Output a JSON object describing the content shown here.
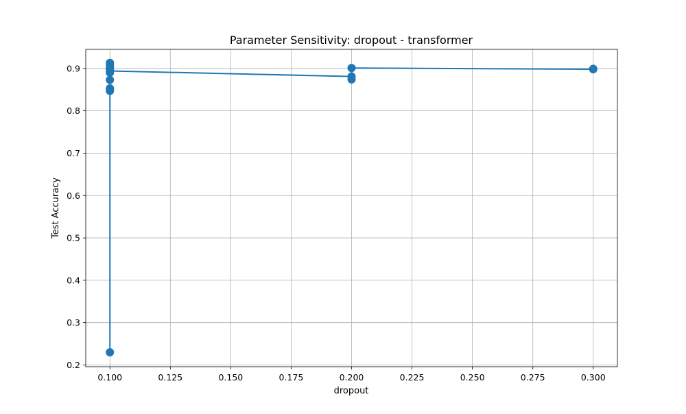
{
  "chart_data": {
    "type": "line",
    "title": "Parameter Sensitivity: dropout - transformer",
    "xlabel": "dropout",
    "ylabel": "Test Accuracy",
    "xlim": [
      0.09,
      0.31
    ],
    "ylim": [
      0.196,
      0.945
    ],
    "xticks": [
      0.1,
      0.125,
      0.15,
      0.175,
      0.2,
      0.225,
      0.25,
      0.275,
      0.3
    ],
    "xtick_labels": [
      "0.100",
      "0.125",
      "0.150",
      "0.175",
      "0.200",
      "0.225",
      "0.250",
      "0.275",
      "0.300"
    ],
    "yticks": [
      0.2,
      0.3,
      0.4,
      0.5,
      0.6,
      0.7,
      0.8,
      0.9
    ],
    "ytick_labels": [
      "0.2",
      "0.3",
      "0.4",
      "0.5",
      "0.6",
      "0.7",
      "0.8",
      "0.9"
    ],
    "grid": true,
    "line_color": "#1f77b4",
    "series": [
      {
        "points": [
          {
            "x": 0.1,
            "y": 0.23
          },
          {
            "x": 0.1,
            "y": 0.847
          },
          {
            "x": 0.1,
            "y": 0.851
          },
          {
            "x": 0.1,
            "y": 0.853
          },
          {
            "x": 0.1,
            "y": 0.873
          },
          {
            "x": 0.1,
            "y": 0.89
          },
          {
            "x": 0.1,
            "y": 0.893
          },
          {
            "x": 0.1,
            "y": 0.897
          },
          {
            "x": 0.1,
            "y": 0.901
          },
          {
            "x": 0.1,
            "y": 0.905
          },
          {
            "x": 0.1,
            "y": 0.909
          },
          {
            "x": 0.1,
            "y": 0.913
          },
          {
            "x": 0.2,
            "y": 0.874
          },
          {
            "x": 0.2,
            "y": 0.881
          },
          {
            "x": 0.2,
            "y": 0.901
          },
          {
            "x": 0.3,
            "y": 0.898
          },
          {
            "x": 0.3,
            "y": 0.899
          }
        ],
        "mean_line": [
          {
            "x": 0.1,
            "y": 0.23
          },
          {
            "x": 0.1,
            "y": 0.913
          },
          {
            "x": 0.1,
            "y": 0.894
          },
          {
            "x": 0.2,
            "y": 0.881
          },
          {
            "x": 0.2,
            "y": 0.901
          },
          {
            "x": 0.3,
            "y": 0.898
          }
        ]
      }
    ]
  }
}
